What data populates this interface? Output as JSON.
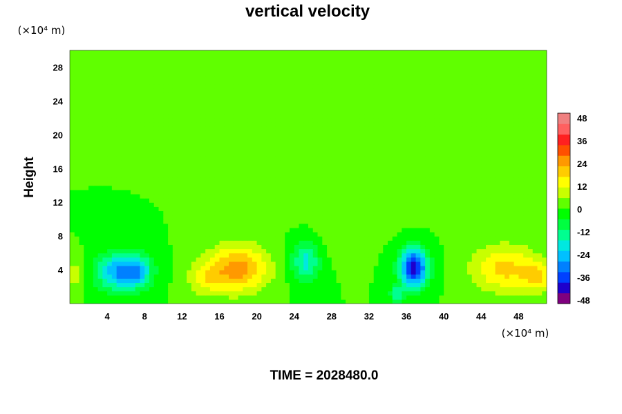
{
  "chart_data": {
    "type": "heatmap",
    "title": "vertical velocity",
    "xlabel": "",
    "ylabel": "Height",
    "x_unit": "(×10⁴ m)",
    "y_unit": "(×10⁴ m)",
    "footer": "TIME = 2028480.0",
    "xlim": [
      0,
      51
    ],
    "ylim": [
      0,
      30
    ],
    "x_ticks": [
      4,
      8,
      12,
      16,
      20,
      24,
      28,
      32,
      36,
      40,
      44,
      48
    ],
    "y_ticks": [
      4,
      8,
      12,
      16,
      20,
      24,
      28
    ],
    "colorbar": {
      "ticks": [
        48,
        36,
        24,
        12,
        0,
        -12,
        -24,
        -36,
        -48
      ],
      "range": [
        -48,
        48
      ],
      "colors": [
        "#7f007f",
        "#1e00cc",
        "#0040ff",
        "#0080ff",
        "#00c0ff",
        "#00e8e0",
        "#00ff90",
        "#00ff40",
        "#00ff00",
        "#60ff00",
        "#c8ff00",
        "#ffff00",
        "#ffcc00",
        "#ff9900",
        "#ff5000",
        "#ff2020",
        "#ff6060",
        "#f08080"
      ]
    },
    "features": [
      {
        "x": 5.5,
        "y": 3.8,
        "sx": 2.6,
        "sy": 2.2,
        "value": -28
      },
      {
        "x": 7.4,
        "y": 4.0,
        "sx": 1.4,
        "sy": 1.8,
        "value": -12
      },
      {
        "x": 18.0,
        "y": 4.2,
        "sx": 3.2,
        "sy": 2.8,
        "value": 24
      },
      {
        "x": 14.5,
        "y": 3.0,
        "sx": 2.0,
        "sy": 2.0,
        "value": 10
      },
      {
        "x": 25.2,
        "y": 5.0,
        "sx": 1.5,
        "sy": 2.4,
        "value": -18
      },
      {
        "x": 36.8,
        "y": 4.3,
        "sx": 1.5,
        "sy": 2.3,
        "value": -40
      },
      {
        "x": 35.0,
        "y": 1.2,
        "sx": 0.8,
        "sy": 1.0,
        "value": -14
      },
      {
        "x": 46.5,
        "y": 4.2,
        "sx": 3.5,
        "sy": 2.8,
        "value": 18
      },
      {
        "x": 50.0,
        "y": 3.2,
        "sx": 1.5,
        "sy": 1.8,
        "value": 14
      },
      {
        "x": 0.5,
        "y": 3.5,
        "sx": 1.2,
        "sy": 2.0,
        "value": 8
      },
      {
        "x": 30.0,
        "y": 14.0,
        "sx": 8.0,
        "sy": 4.0,
        "value": 4
      },
      {
        "x": 5.0,
        "y": 9.0,
        "sx": 2.0,
        "sy": 1.5,
        "value": -4
      },
      {
        "x": 29.0,
        "y": 8.0,
        "sx": 2.0,
        "sy": 2.5,
        "value": 3
      }
    ]
  }
}
